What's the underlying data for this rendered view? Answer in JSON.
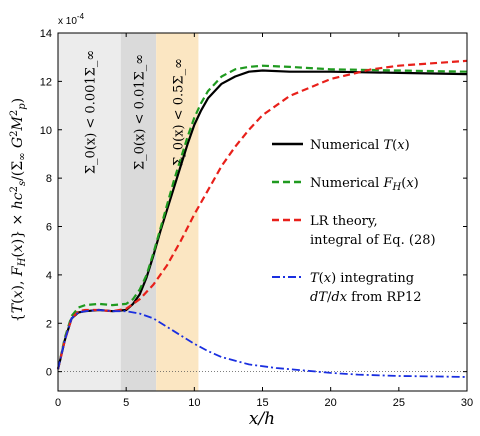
{
  "chart_data": {
    "type": "line",
    "xlabel": "x/h",
    "ylabel": "{T(x), F_H(x)} × hc_s^2/(Σ_∞ G^2 M_p^2)",
    "y_exponent_label": "x 10^-4",
    "xlim": [
      0,
      30
    ],
    "ylim": [
      -0.8,
      14
    ],
    "x_ticks": [
      0,
      5,
      10,
      15,
      20,
      25,
      30
    ],
    "y_ticks": [
      0,
      2,
      4,
      6,
      8,
      10,
      12,
      14
    ],
    "grid": false,
    "legend_position": "right",
    "bands": [
      {
        "x0": 0,
        "x1": 4.6,
        "color": "#ececec",
        "label": "Σ_0(x) < 0.001Σ_∞"
      },
      {
        "x0": 4.6,
        "x1": 7.2,
        "color": "#dadada",
        "label": "Σ_0(x) < 0.01Σ_∞"
      },
      {
        "x0": 7.2,
        "x1": 10.3,
        "color": "#fbe6c2",
        "label": "Σ_0(x) < 0.5Σ_∞"
      }
    ],
    "series": [
      {
        "name": "Numerical T(x)",
        "color": "#000000",
        "dash": "solid",
        "x": [
          0,
          0.5,
          1,
          1.5,
          2,
          3,
          4,
          5,
          5.5,
          6,
          6.5,
          7,
          7.5,
          8,
          8.5,
          9,
          9.5,
          10,
          10.5,
          11,
          12,
          13,
          14,
          15,
          17,
          20,
          25,
          30
        ],
        "y": [
          0.1,
          1.3,
          2.2,
          2.45,
          2.5,
          2.55,
          2.5,
          2.55,
          2.8,
          3.2,
          3.9,
          4.8,
          5.8,
          6.7,
          7.6,
          8.5,
          9.4,
          10.2,
          10.8,
          11.3,
          11.9,
          12.2,
          12.4,
          12.45,
          12.4,
          12.4,
          12.35,
          12.3
        ]
      },
      {
        "name": "Numerical F_H(x)",
        "color": "#1f9a1f",
        "dash": "dashed",
        "x": [
          0,
          0.5,
          1,
          1.5,
          2,
          3,
          4,
          5,
          5.5,
          6,
          6.5,
          7,
          7.5,
          8,
          8.5,
          9,
          9.5,
          10,
          10.5,
          11,
          12,
          13,
          14,
          15,
          17,
          20,
          25,
          30
        ],
        "y": [
          0.1,
          1.4,
          2.3,
          2.65,
          2.75,
          2.8,
          2.75,
          2.8,
          3.0,
          3.4,
          4.0,
          4.9,
          5.9,
          6.9,
          7.9,
          8.8,
          9.7,
          10.5,
          11.1,
          11.6,
          12.2,
          12.5,
          12.6,
          12.65,
          12.6,
          12.5,
          12.45,
          12.4
        ]
      },
      {
        "name": "LR theory, integral of Eq. (28)",
        "color": "#e8201a",
        "dash": "dashed",
        "x": [
          0,
          0.5,
          1,
          1.5,
          2,
          3,
          4,
          5,
          6,
          7,
          8,
          9,
          10,
          11,
          12,
          13,
          14,
          15,
          17,
          20,
          23,
          25,
          30
        ],
        "y": [
          0.1,
          1.3,
          2.2,
          2.5,
          2.55,
          2.55,
          2.5,
          2.6,
          3.0,
          3.6,
          4.4,
          5.4,
          6.5,
          7.5,
          8.5,
          9.3,
          10.0,
          10.6,
          11.4,
          12.1,
          12.5,
          12.65,
          12.85
        ]
      },
      {
        "name": "T(x) integrating dT/dx from RP12",
        "color": "#1a2fe0",
        "dash": "dashdot",
        "x": [
          0,
          0.5,
          1,
          1.5,
          2,
          3,
          4,
          5,
          6,
          7,
          8,
          9,
          10,
          11,
          12,
          14,
          16,
          18,
          20,
          22,
          25,
          28,
          30
        ],
        "y": [
          0.1,
          1.3,
          2.2,
          2.45,
          2.5,
          2.55,
          2.5,
          2.5,
          2.4,
          2.2,
          1.85,
          1.5,
          1.15,
          0.85,
          0.6,
          0.3,
          0.15,
          0.05,
          -0.05,
          -0.12,
          -0.18,
          -0.2,
          -0.22
        ]
      }
    ],
    "zero_line": true
  }
}
